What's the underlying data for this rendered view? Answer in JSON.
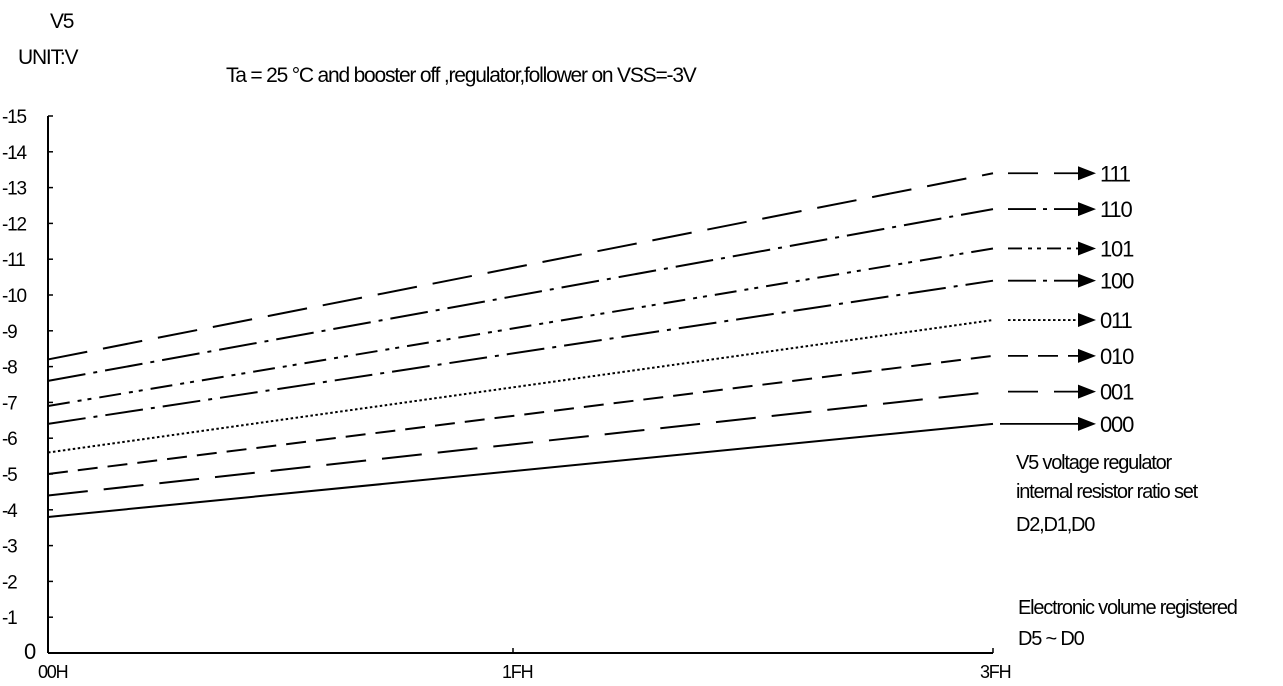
{
  "y_axis": {
    "label": "V5",
    "unit": "UNIT:V"
  },
  "title": "Ta = 25 °C and booster off ,regulator,follower on VSS=-3V",
  "legend_title_lines": [
    "V5 voltage regulator",
    "internal resistor ratio set",
    "D2,D1,D0"
  ],
  "x_note_lines": [
    "Electronic volume registered",
    "D5 ~ D0"
  ],
  "chart_data": {
    "type": "line",
    "title": "Ta = 25 °C and booster off ,regulator,follower on VSS=-3V",
    "xlabel": "Electronic volume registered D5 ~ D0",
    "ylabel": "V5",
    "y_unit": "UNIT:V",
    "x_categories": [
      "00H",
      "1FH",
      "3FH"
    ],
    "x_range": [
      0,
      63
    ],
    "ylim": [
      0,
      -15
    ],
    "y_ticks": [
      "0",
      "-1",
      "-2",
      "-3",
      "-4",
      "-5",
      "-6",
      "-7",
      "-8",
      "-9",
      "-10",
      "-11",
      "-12",
      "-13",
      "-14",
      "-15"
    ],
    "grid": false,
    "legend_placement": "right",
    "series": [
      {
        "name": "111",
        "x": [
          0,
          63
        ],
        "y": [
          -8.2,
          -13.4
        ],
        "style": "long-dash"
      },
      {
        "name": "110",
        "x": [
          0,
          63
        ],
        "y": [
          -7.6,
          -12.4
        ],
        "style": "dash-dot"
      },
      {
        "name": "101",
        "x": [
          0,
          63
        ],
        "y": [
          -6.9,
          -11.3
        ],
        "style": "dash-dot-dot"
      },
      {
        "name": "100",
        "x": [
          0,
          63
        ],
        "y": [
          -6.4,
          -10.4
        ],
        "style": "dash-dot"
      },
      {
        "name": "011",
        "x": [
          0,
          63
        ],
        "y": [
          -5.6,
          -9.3
        ],
        "style": "dotted"
      },
      {
        "name": "010",
        "x": [
          0,
          63
        ],
        "y": [
          -5.0,
          -8.3
        ],
        "style": "dashed"
      },
      {
        "name": "001",
        "x": [
          0,
          63
        ],
        "y": [
          -4.4,
          -7.3
        ],
        "style": "long-dash"
      },
      {
        "name": "000",
        "x": [
          0,
          63
        ],
        "y": [
          -3.8,
          -6.4
        ],
        "style": "solid"
      }
    ]
  }
}
